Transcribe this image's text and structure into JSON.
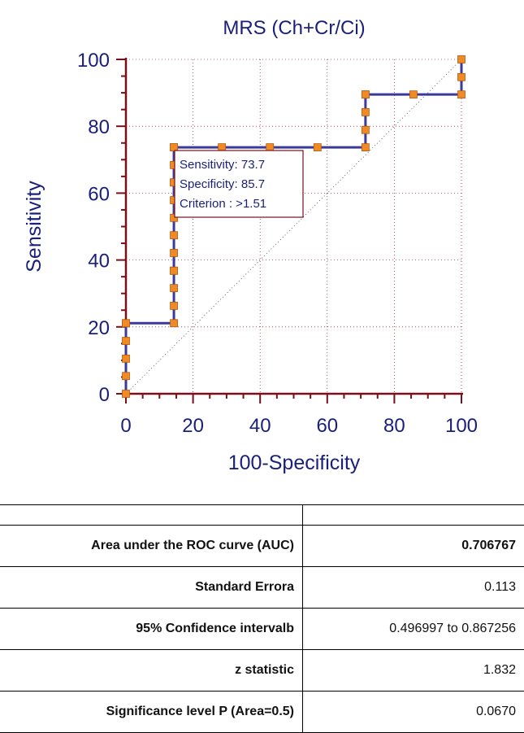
{
  "chart_data": {
    "type": "line",
    "title": "MRS (Ch+Cr/Ci)",
    "xlabel": "100-Specificity",
    "ylabel": "Sensitivity",
    "xlim": [
      0,
      100
    ],
    "ylim": [
      0,
      100
    ],
    "x_ticks": [
      "0",
      "20",
      "40",
      "60",
      "80",
      "100"
    ],
    "y_ticks": [
      "0",
      "20",
      "40",
      "60",
      "80",
      "100"
    ],
    "grid": true,
    "reference_line": "diagonal",
    "series": [
      {
        "x": [
          0,
          0,
          0,
          0,
          0,
          0,
          14.3,
          14.3,
          14.3,
          14.3,
          14.3,
          14.3,
          14.3,
          14.3,
          14.3,
          14.3,
          14.3,
          14.3,
          14.3,
          14.3,
          28.6,
          42.9,
          57.1,
          71.4,
          71.4,
          71.4,
          71.4,
          71.4,
          85.7,
          100,
          100,
          100
        ],
        "y": [
          0,
          5.3,
          10.5,
          15.8,
          21.1,
          21.1,
          21.1,
          26.3,
          36.8,
          42.1,
          47.4,
          52.6,
          57.9,
          63.2,
          68.4,
          73.7,
          36.8,
          31.6,
          63.2,
          73.7,
          73.7,
          73.7,
          73.7,
          73.7,
          78.9,
          84.2,
          89.5,
          89.5,
          89.5,
          89.5,
          94.7,
          100
        ]
      }
    ],
    "colors": {
      "line": "#3a3a9a",
      "marker": "#f08a24",
      "axis": "#7a0f1a",
      "text": "#1a1f7a",
      "grid": "#a03040"
    },
    "annotation": {
      "lines": [
        "Sensitivity: 73.7",
        "Specificity: 85.7",
        "Criterion : >1.51"
      ]
    }
  },
  "table": {
    "rows": [
      {
        "label": "Area under the ROC curve (AUC)",
        "value": "0.706767",
        "bold_value": true
      },
      {
        "label": "Standard Errora",
        "value": "0.113"
      },
      {
        "label": "95% Confidence intervalb",
        "value": "0.496997 to 0.867256"
      },
      {
        "label": "z statistic",
        "value": "1.832"
      },
      {
        "label": "Significance level P (Area=0.5)",
        "value": "0.0670"
      }
    ]
  }
}
